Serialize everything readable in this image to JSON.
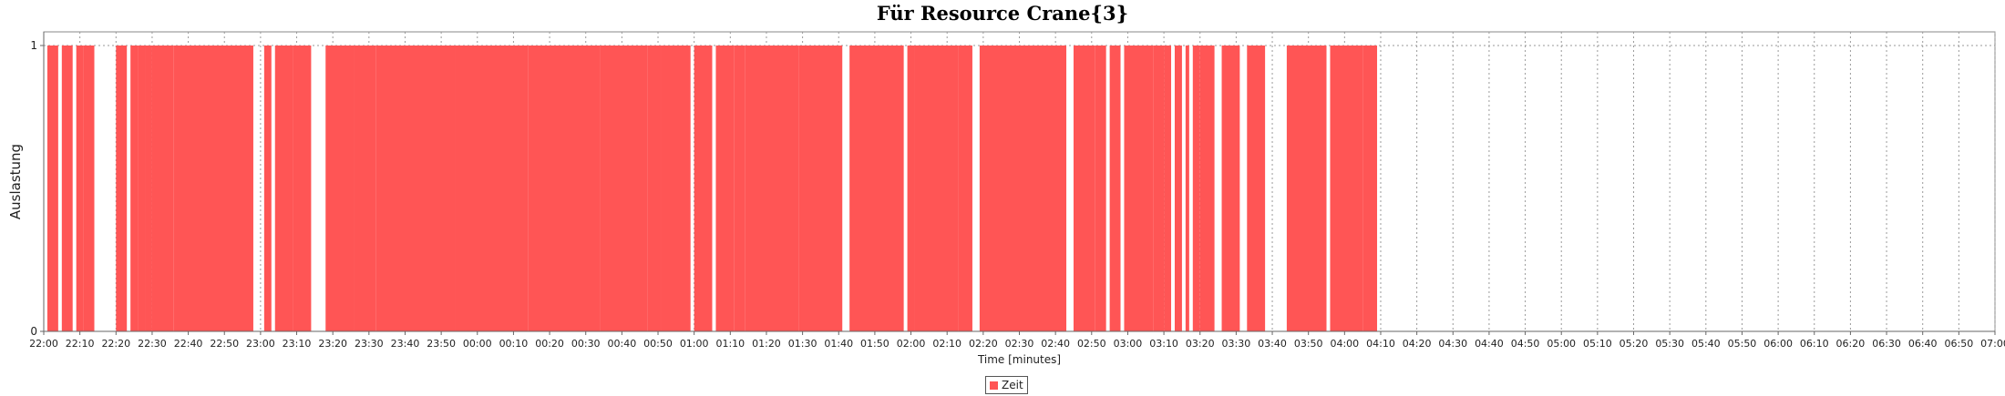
{
  "chart_data": {
    "type": "area",
    "title": "Für Resource Crane{3}",
    "xlabel": "Time [minutes]",
    "ylabel": "Auslastung",
    "x_range": [
      "22:00",
      "07:00"
    ],
    "ylim": [
      0,
      1
    ],
    "y_ticks": [
      "0",
      "1"
    ],
    "x_ticks": [
      "22:00",
      "22:10",
      "22:20",
      "22:30",
      "22:40",
      "22:50",
      "23:00",
      "23:10",
      "23:20",
      "23:30",
      "23:40",
      "23:50",
      "00:00",
      "00:10",
      "00:20",
      "00:30",
      "00:40",
      "00:50",
      "01:00",
      "01:10",
      "01:20",
      "01:30",
      "01:40",
      "01:50",
      "02:00",
      "02:10",
      "02:20",
      "02:30",
      "02:40",
      "02:50",
      "03:00",
      "03:10",
      "03:20",
      "03:30",
      "03:40",
      "03:50",
      "04:00",
      "04:10",
      "04:20",
      "04:30",
      "04:40",
      "04:50",
      "05:00",
      "05:10",
      "05:20",
      "05:30",
      "05:40",
      "05:50",
      "06:00",
      "06:10",
      "06:20",
      "06:30",
      "06:40",
      "06:50",
      "07:00"
    ],
    "grid": true,
    "legend_position": "bottom-center",
    "series": [
      {
        "name": "Zeit",
        "color": "#ff5555",
        "busy_intervals": [
          [
            "22:01",
            "22:04"
          ],
          [
            "22:05",
            "22:08"
          ],
          [
            "22:09",
            "22:11"
          ],
          [
            "22:11",
            "22:14"
          ],
          [
            "22:20",
            "22:23"
          ],
          [
            "22:24",
            "22:26"
          ],
          [
            "22:26",
            "22:28"
          ],
          [
            "22:28",
            "22:30"
          ],
          [
            "22:30",
            "22:36"
          ],
          [
            "22:36",
            "22:58"
          ],
          [
            "23:01",
            "23:03"
          ],
          [
            "23:04",
            "23:09"
          ],
          [
            "23:09",
            "23:14"
          ],
          [
            "23:18",
            "23:26"
          ],
          [
            "23:26",
            "23:32"
          ],
          [
            "23:32",
            "23:54"
          ],
          [
            "23:54",
            "00:14"
          ],
          [
            "00:14",
            "00:34"
          ],
          [
            "00:34",
            "00:47"
          ],
          [
            "00:47",
            "00:51"
          ],
          [
            "00:51",
            "00:59"
          ],
          [
            "01:00",
            "01:05"
          ],
          [
            "01:06",
            "01:11"
          ],
          [
            "01:11",
            "01:14"
          ],
          [
            "01:14",
            "01:29"
          ],
          [
            "01:29",
            "01:41"
          ],
          [
            "01:43",
            "01:58"
          ],
          [
            "01:59",
            "02:01"
          ],
          [
            "02:01",
            "02:13"
          ],
          [
            "02:13",
            "02:17"
          ],
          [
            "02:19",
            "02:43"
          ],
          [
            "02:45",
            "02:51"
          ],
          [
            "02:51",
            "02:54"
          ],
          [
            "02:55",
            "02:58"
          ],
          [
            "02:59",
            "03:07"
          ],
          [
            "03:07",
            "03:10"
          ],
          [
            "03:10",
            "03:12"
          ],
          [
            "03:13",
            "03:15"
          ],
          [
            "03:16",
            "03:17"
          ],
          [
            "03:18",
            "03:20"
          ],
          [
            "03:20",
            "03:24"
          ],
          [
            "03:26",
            "03:31"
          ],
          [
            "03:33",
            "03:38"
          ],
          [
            "03:44",
            "03:55"
          ],
          [
            "03:56",
            "04:05"
          ],
          [
            "04:05",
            "04:09"
          ]
        ]
      }
    ]
  }
}
